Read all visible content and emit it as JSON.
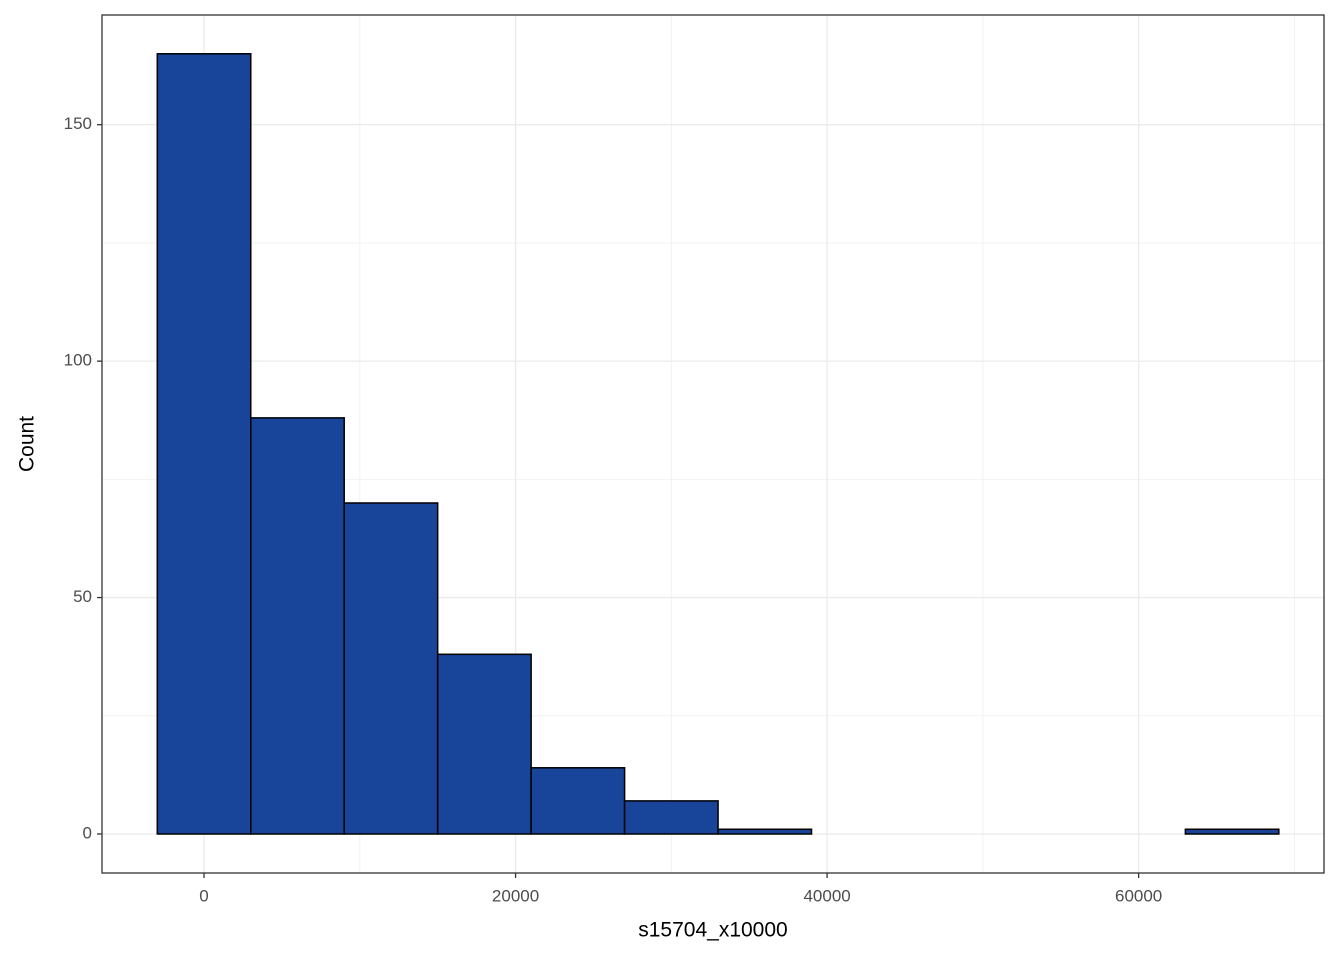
{
  "chart_data": {
    "type": "histogram",
    "x_label": "s15704_x10000",
    "y_label": "Count",
    "bins": [
      -3000,
      3000,
      9000,
      15000,
      21000,
      27000,
      33000,
      39000,
      45000,
      51000,
      57000,
      63000,
      69000
    ],
    "values": [
      165,
      88,
      70,
      38,
      14,
      7,
      1,
      0,
      0,
      0,
      0,
      1
    ],
    "color": "#18449a",
    "edge_color": "#000000",
    "xlim": [
      -6550,
      71900
    ],
    "ylim": [
      -8.25,
      173.2
    ],
    "xticks": [
      0,
      20000,
      40000,
      60000
    ],
    "yticks": [
      0,
      50,
      100,
      150
    ],
    "grid": true
  }
}
